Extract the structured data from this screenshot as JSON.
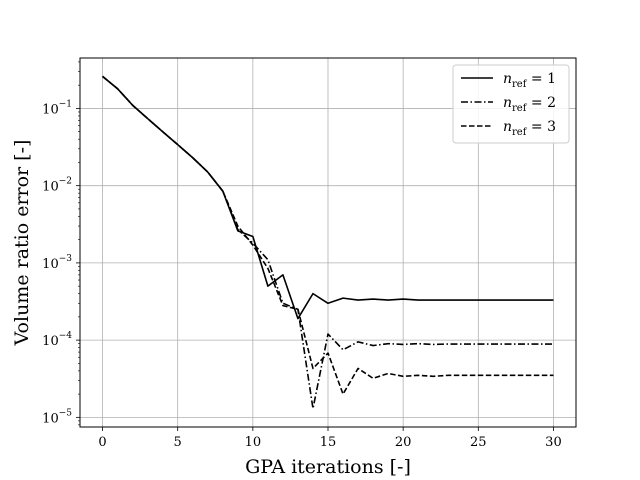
{
  "chart_data": {
    "type": "line",
    "title": "",
    "xlabel": "GPA iterations [-]",
    "ylabel": "Volume ratio error [-]",
    "xscale": "linear",
    "yscale": "log",
    "xlim": [
      -1.5,
      31.5
    ],
    "ylim": [
      7.5e-06,
      0.45
    ],
    "xticks": [
      0,
      5,
      10,
      15,
      20,
      25,
      30
    ],
    "xtick_labels": [
      "0",
      "5",
      "10",
      "15",
      "20",
      "25",
      "30"
    ],
    "yticks": [
      1e-05,
      0.0001,
      0.001,
      0.01,
      0.1
    ],
    "ytick_labels": [
      {
        "base": "10",
        "exp": "−5"
      },
      {
        "base": "10",
        "exp": "−4"
      },
      {
        "base": "10",
        "exp": "−3"
      },
      {
        "base": "10",
        "exp": "−2"
      },
      {
        "base": "10",
        "exp": "−1"
      }
    ],
    "grid": true,
    "legend_position": "top-right",
    "x": [
      0,
      1,
      2,
      3,
      4,
      5,
      6,
      7,
      8,
      9,
      10,
      11,
      12,
      13,
      14,
      15,
      16,
      17,
      18,
      19,
      20,
      21,
      22,
      23,
      24,
      25,
      26,
      27,
      28,
      29,
      30
    ],
    "series": [
      {
        "name": "n_ref = 1",
        "legend": {
          "var": "n",
          "sub": "ref",
          "rhs": " = 1"
        },
        "style": "solid",
        "color": "#000000",
        "values": [
          0.26,
          0.18,
          0.11,
          0.074,
          0.05,
          0.034,
          0.023,
          0.015,
          0.0085,
          0.0026,
          0.0022,
          0.0005,
          0.0007,
          0.00019,
          0.0004,
          0.0003,
          0.00035,
          0.00033,
          0.00034,
          0.00033,
          0.00034,
          0.00033,
          0.00033,
          0.00033,
          0.00033,
          0.00033,
          0.00033,
          0.00033,
          0.00033,
          0.00033,
          0.00033
        ]
      },
      {
        "name": "n_ref = 2",
        "legend": {
          "var": "n",
          "sub": "ref",
          "rhs": " = 2"
        },
        "style": "dashdot",
        "color": "#000000",
        "values": [
          0.26,
          0.18,
          0.11,
          0.074,
          0.05,
          0.034,
          0.023,
          0.015,
          0.0085,
          0.0027,
          0.0018,
          0.0011,
          0.0003,
          0.00025,
          1.3e-05,
          0.00012,
          7.5e-05,
          9.5e-05,
          8.5e-05,
          9e-05,
          8.8e-05,
          9e-05,
          8.8e-05,
          8.9e-05,
          8.9e-05,
          8.9e-05,
          8.9e-05,
          8.9e-05,
          8.9e-05,
          8.9e-05,
          8.9e-05
        ]
      },
      {
        "name": "n_ref = 3",
        "legend": {
          "var": "n",
          "sub": "ref",
          "rhs": " = 3"
        },
        "style": "dashed",
        "color": "#000000",
        "values": [
          0.26,
          0.18,
          0.11,
          0.074,
          0.05,
          0.034,
          0.023,
          0.015,
          0.0085,
          0.003,
          0.0017,
          0.00085,
          0.00028,
          0.00025,
          4.3e-05,
          6.8e-05,
          2e-05,
          4.3e-05,
          3.2e-05,
          3.7e-05,
          3.4e-05,
          3.5e-05,
          3.4e-05,
          3.5e-05,
          3.5e-05,
          3.5e-05,
          3.5e-05,
          3.5e-05,
          3.5e-05,
          3.5e-05,
          3.5e-05
        ]
      }
    ]
  }
}
